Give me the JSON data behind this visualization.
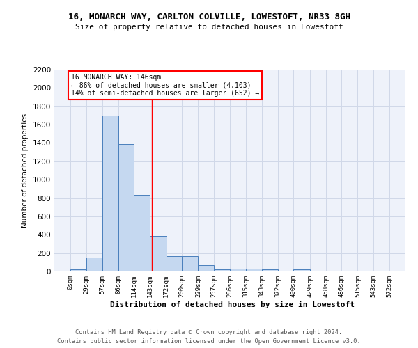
{
  "title1": "16, MONARCH WAY, CARLTON COLVILLE, LOWESTOFT, NR33 8GH",
  "title2": "Size of property relative to detached houses in Lowestoft",
  "xlabel": "Distribution of detached houses by size in Lowestoft",
  "ylabel": "Number of detached properties",
  "bin_edges": [
    0,
    29,
    57,
    86,
    114,
    143,
    172,
    200,
    229,
    257,
    286,
    315,
    343,
    372,
    400,
    429,
    458,
    486,
    515,
    543,
    572
  ],
  "bar_heights": [
    20,
    155,
    1700,
    1390,
    835,
    390,
    165,
    165,
    70,
    25,
    30,
    30,
    20,
    5,
    20,
    5,
    5,
    5,
    5,
    5
  ],
  "bar_color": "#c5d8f0",
  "bar_edge_color": "#4a7fbc",
  "grid_color": "#d0d8e8",
  "background_color": "#eef2fa",
  "red_line_x": 146,
  "annotation_title": "16 MONARCH WAY: 146sqm",
  "annotation_line1": "← 86% of detached houses are smaller (4,103)",
  "annotation_line2": "14% of semi-detached houses are larger (652) →",
  "ylim": [
    0,
    2200
  ],
  "yticks": [
    0,
    200,
    400,
    600,
    800,
    1000,
    1200,
    1400,
    1600,
    1800,
    2000,
    2200
  ],
  "footer1": "Contains HM Land Registry data © Crown copyright and database right 2024.",
  "footer2": "Contains public sector information licensed under the Open Government Licence v3.0."
}
